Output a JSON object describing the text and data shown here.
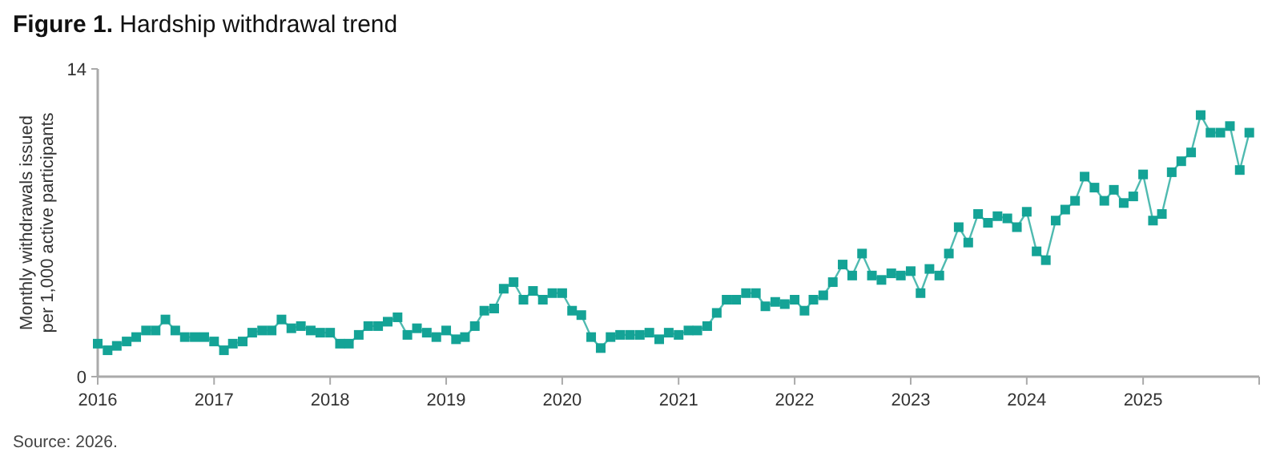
{
  "chart_data": {
    "type": "line",
    "title": "Figure 1. Hardship withdrawal trend",
    "ylabel": "Monthly withdrawals issued per 1,000 active participants",
    "annotations": [
      "Source: 2026."
    ],
    "x": [
      "2016-01",
      "2016-02",
      "2016-03",
      "2016-04",
      "2016-05",
      "2016-06",
      "2016-07",
      "2016-08",
      "2016-09",
      "2016-10",
      "2016-11",
      "2016-12",
      "2017-01",
      "2017-02",
      "2017-03",
      "2017-04",
      "2017-05",
      "2017-06",
      "2017-07",
      "2017-08",
      "2017-09",
      "2017-10",
      "2017-11",
      "2017-12",
      "2018-01",
      "2018-02",
      "2018-03",
      "2018-04",
      "2018-05",
      "2018-06",
      "2018-07",
      "2018-08",
      "2018-09",
      "2018-10",
      "2018-11",
      "2018-12",
      "2019-01",
      "2019-02",
      "2019-03",
      "2019-04",
      "2019-05",
      "2019-06",
      "2019-07",
      "2019-08",
      "2019-09",
      "2019-10",
      "2019-11",
      "2019-12",
      "2020-01",
      "2020-02",
      "2020-03",
      "2020-04",
      "2020-05",
      "2020-06",
      "2020-07",
      "2020-08",
      "2020-09",
      "2020-10",
      "2020-11",
      "2020-12",
      "2021-01",
      "2021-02",
      "2021-03",
      "2021-04",
      "2021-05",
      "2021-06",
      "2021-07",
      "2021-08",
      "2021-09",
      "2021-10",
      "2021-11",
      "2021-12",
      "2022-01",
      "2022-02",
      "2022-03",
      "2022-04",
      "2022-05",
      "2022-06",
      "2022-07",
      "2022-08",
      "2022-09",
      "2022-10",
      "2022-11",
      "2022-12",
      "2023-01",
      "2023-02",
      "2023-03",
      "2023-04",
      "2023-05",
      "2023-06",
      "2023-07",
      "2023-08",
      "2023-09",
      "2023-10",
      "2023-11",
      "2023-12",
      "2024-01",
      "2024-02",
      "2024-03",
      "2024-04",
      "2024-05",
      "2024-06",
      "2024-07",
      "2024-08",
      "2024-09",
      "2024-10",
      "2024-11",
      "2024-12",
      "2025-01",
      "2025-02",
      "2025-03",
      "2025-04",
      "2025-05",
      "2025-06",
      "2025-07",
      "2025-08",
      "2025-09",
      "2025-10",
      "2025-11",
      "2025-12"
    ],
    "series": [
      {
        "color": "#14a396",
        "values": [
          1.5,
          1.2,
          1.4,
          1.6,
          1.8,
          2.1,
          2.1,
          2.6,
          2.1,
          1.8,
          1.8,
          1.8,
          1.6,
          1.2,
          1.5,
          1.6,
          2.0,
          2.1,
          2.1,
          2.6,
          2.2,
          2.3,
          2.1,
          2.0,
          2.0,
          1.5,
          1.5,
          1.9,
          2.3,
          2.3,
          2.5,
          2.7,
          1.9,
          2.2,
          2.0,
          1.8,
          2.1,
          1.7,
          1.8,
          2.3,
          3.0,
          3.1,
          4.0,
          4.3,
          3.5,
          3.9,
          3.5,
          3.8,
          3.8,
          3.0,
          2.8,
          1.8,
          1.3,
          1.8,
          1.9,
          1.9,
          1.9,
          2.0,
          1.7,
          2.0,
          1.9,
          2.1,
          2.1,
          2.3,
          2.9,
          3.5,
          3.5,
          3.8,
          3.8,
          3.2,
          3.4,
          3.3,
          3.5,
          3.0,
          3.5,
          3.7,
          4.3,
          5.1,
          4.6,
          5.6,
          4.6,
          4.4,
          4.7,
          4.6,
          4.8,
          3.8,
          4.9,
          4.6,
          5.6,
          6.8,
          6.1,
          7.4,
          7.0,
          7.3,
          7.2,
          6.8,
          7.5,
          5.7,
          5.3,
          7.1,
          7.6,
          8.0,
          9.1,
          8.6,
          8.0,
          8.5,
          7.9,
          8.2,
          9.2,
          7.1,
          7.4,
          9.3,
          9.8,
          10.2,
          11.9,
          11.1,
          11.1,
          11.4,
          9.4,
          11.1
        ]
      }
    ],
    "xlim": [
      "2016-01",
      "2026-01"
    ],
    "xticks": [
      "2016",
      "2017",
      "2018",
      "2019",
      "2020",
      "2021",
      "2022",
      "2023",
      "2024",
      "2025",
      {
        "value": "2026",
        "label": null
      }
    ],
    "ylim": [
      0,
      14
    ],
    "yticks": [
      0,
      14
    ],
    "grid": false,
    "marker": "square",
    "line_style": "solid"
  }
}
